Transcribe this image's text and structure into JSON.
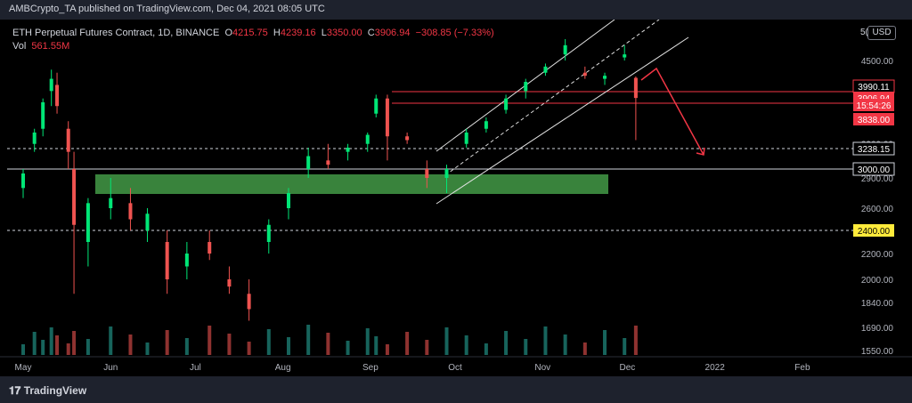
{
  "header": {
    "publisher": "AMBCrypto_TA published on TradingView.com, Dec 04, 2021 08:05 UTC"
  },
  "legend": {
    "symbol": "ETH Perpetual Futures Contract, 1D, BINANCE",
    "o_label": "O",
    "o_value": "4215.75",
    "h_label": "H",
    "h_value": "4239.16",
    "l_label": "L",
    "l_value": "3350.00",
    "c_label": "C",
    "c_value": "3906.94",
    "change": "−308.85 (−7.33%)",
    "vol_label": "Vol",
    "vol_value": "561.55M"
  },
  "currency": {
    "prefix": "5(",
    "label": "USD"
  },
  "footer": {
    "logo_text": "TradingView"
  },
  "colors": {
    "up": "#26a69a",
    "down": "#ef5350",
    "bright_up": "#00e676",
    "zone": "#4caf50",
    "level_red": "#f23645",
    "yellow": "#ffeb3b"
  },
  "chart_data": {
    "type": "candlestick",
    "y_ticks": [
      "4500.00",
      "3900.00",
      "3600.00",
      "3300.00",
      "2900.00",
      "2600.00",
      "2400.00",
      "2200.00",
      "2000.00",
      "1840.00",
      "1690.00",
      "1550.00"
    ],
    "x_ticks": [
      "May",
      "Jun",
      "Jul",
      "Aug",
      "Sep",
      "Oct",
      "Nov",
      "Dec",
      "2022",
      "Feb"
    ],
    "price_labels": [
      {
        "text": "3990.11",
        "price": 3990.11,
        "style": "red-outline"
      },
      {
        "text": "3906.94",
        "price": 3906.94,
        "style": "red-fill"
      },
      {
        "text": "15:54:26",
        "price": 3850,
        "style": "red-fill"
      },
      {
        "text": "3838.00",
        "price": 3838,
        "style": "red-fill"
      },
      {
        "text": "3238.15",
        "price": 3238.15,
        "style": "white"
      },
      {
        "text": "3000.00",
        "price": 3000,
        "style": "white"
      },
      {
        "text": "2400.00",
        "price": 2400,
        "style": "yellow"
      }
    ],
    "horizontal_levels": [
      {
        "price": 3990.11,
        "style": "red-solid"
      },
      {
        "price": 3838,
        "style": "red-solid"
      },
      {
        "price": 3238.15,
        "style": "white-dashed"
      },
      {
        "price": 3000,
        "style": "white-solid"
      },
      {
        "price": 2400,
        "style": "white-dashed"
      }
    ],
    "demand_zone": {
      "from": "2021-05-28",
      "to": "2021-11-30",
      "low": 2780,
      "high": 3000
    },
    "candles_ohlc": [
      [
        "2021-05-01",
        2800,
        3000,
        2700,
        2950
      ],
      [
        "2021-05-05",
        3300,
        3500,
        3200,
        3450
      ],
      [
        "2021-05-08",
        3500,
        3900,
        3400,
        3850
      ],
      [
        "2021-05-11",
        4000,
        4350,
        3800,
        4200
      ],
      [
        "2021-05-13",
        4100,
        4300,
        3700,
        3800
      ],
      [
        "2021-05-17",
        3500,
        3600,
        3000,
        3200
      ],
      [
        "2021-05-19",
        3000,
        3200,
        1900,
        2450
      ],
      [
        "2021-05-24",
        2300,
        2700,
        2100,
        2650
      ],
      [
        "2021-06-01",
        2600,
        2900,
        2500,
        2700
      ],
      [
        "2021-06-08",
        2650,
        2800,
        2400,
        2500
      ],
      [
        "2021-06-14",
        2400,
        2600,
        2300,
        2550
      ],
      [
        "2021-06-21",
        2300,
        2400,
        1900,
        2000
      ],
      [
        "2021-06-28",
        2100,
        2300,
        2000,
        2200
      ],
      [
        "2021-07-06",
        2300,
        2400,
        2150,
        2200
      ],
      [
        "2021-07-13",
        2000,
        2100,
        1900,
        1950
      ],
      [
        "2021-07-20",
        1900,
        2000,
        1730,
        1800
      ],
      [
        "2021-07-27",
        2300,
        2500,
        2200,
        2450
      ],
      [
        "2021-08-03",
        2600,
        2800,
        2500,
        2750
      ],
      [
        "2021-08-10",
        3000,
        3250,
        2900,
        3150
      ],
      [
        "2021-08-17",
        3100,
        3300,
        3000,
        3050
      ],
      [
        "2021-08-24",
        3200,
        3300,
        3100,
        3250
      ],
      [
        "2021-08-31",
        3300,
        3450,
        3200,
        3420
      ],
      [
        "2021-09-03",
        3700,
        3950,
        3650,
        3900
      ],
      [
        "2021-09-07",
        3900,
        3950,
        3100,
        3400
      ],
      [
        "2021-09-14",
        3400,
        3450,
        3300,
        3350
      ],
      [
        "2021-09-21",
        3000,
        3100,
        2800,
        2900
      ],
      [
        "2021-09-28",
        2900,
        3050,
        2750,
        3000
      ],
      [
        "2021-10-05",
        3300,
        3500,
        3250,
        3450
      ],
      [
        "2021-10-12",
        3500,
        3650,
        3450,
        3600
      ],
      [
        "2021-10-19",
        3750,
        3950,
        3700,
        3900
      ],
      [
        "2021-10-26",
        4000,
        4200,
        3900,
        4150
      ],
      [
        "2021-11-02",
        4300,
        4450,
        4250,
        4400
      ],
      [
        "2021-11-09",
        4600,
        4850,
        4500,
        4750
      ],
      [
        "2021-11-16",
        4300,
        4400,
        4200,
        4250
      ],
      [
        "2021-11-23",
        4200,
        4300,
        4100,
        4250
      ],
      [
        "2021-11-30",
        4550,
        4750,
        4500,
        4600
      ],
      [
        "2021-12-04",
        4215.75,
        4239.16,
        3350,
        3906.94
      ]
    ],
    "drawings": [
      "ascending channel lines (white)",
      "dashed midline",
      "red projection path"
    ]
  }
}
